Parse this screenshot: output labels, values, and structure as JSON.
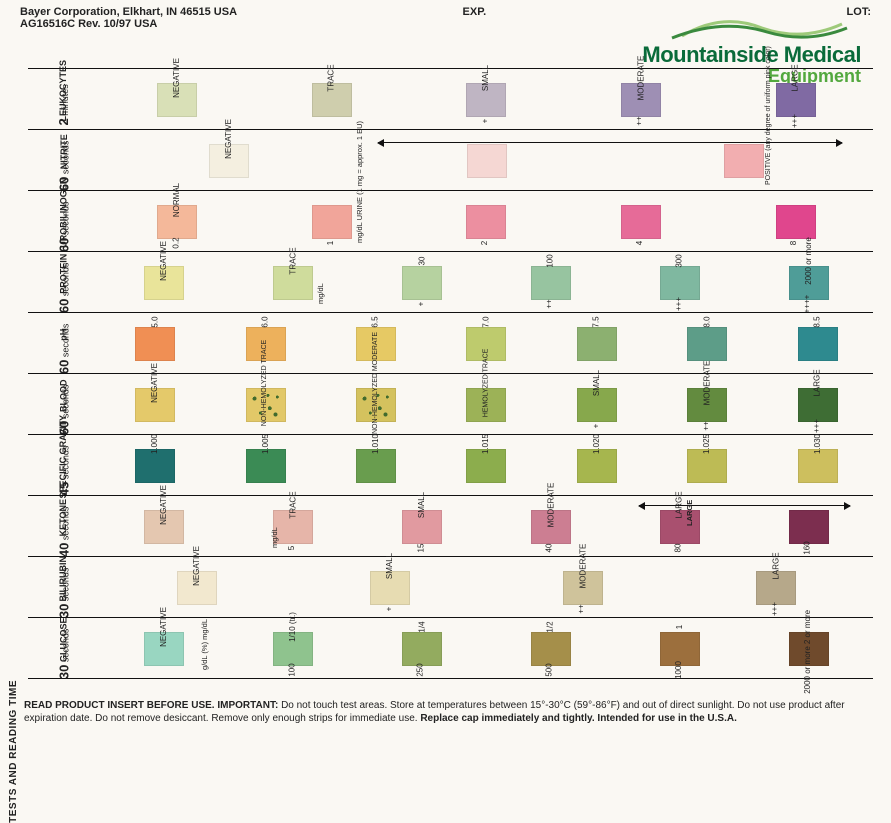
{
  "header": {
    "line1": "Bayer Corporation, Elkhart, IN 46515 USA",
    "line2": "AG16516C  Rev. 10/97  USA",
    "exp": "EXP.",
    "lot": "LOT:"
  },
  "logo": {
    "brand_top": "Mountainside Medical",
    "brand_bottom": "Equipment",
    "color_top": "#0a6b3a",
    "color_bottom": "#53a83e"
  },
  "tests_and_reading_time": "TESTS AND READING TIME",
  "rows": [
    {
      "name": "LEUKOCYTES",
      "timing_num": "2",
      "timing_unit": "minutes",
      "unit_note": "",
      "cells": [
        {
          "label": "NEGATIVE",
          "sub": "",
          "color": "#d9e0b7"
        },
        {
          "label": "TRACE",
          "sub": "",
          "color": "#cfcead"
        },
        {
          "label": "SMALL",
          "sub": "+",
          "color": "#bfb5c3"
        },
        {
          "label": "MODERATE",
          "sub": "++",
          "color": "#9e8fb4"
        },
        {
          "label": "LARGE",
          "sub": "+++",
          "color": "#806aa3"
        }
      ]
    },
    {
      "name": "NITRITE",
      "timing_num": "60",
      "timing_unit": "seconds",
      "unit_note": "",
      "arrow_label": "POSITIVE (any degree of uniform pink color)",
      "cells": [
        {
          "label": "NEGATIVE",
          "sub": "",
          "color": "#f4efe0"
        },
        {
          "label": "",
          "sub": "",
          "color": "#f5d7d3"
        },
        {
          "label": "",
          "sub": "",
          "color": "#f2aeb0"
        }
      ]
    },
    {
      "name": "UROBILINOGEN",
      "timing_num": "60",
      "timing_unit": "seconds",
      "unit_note": "mg/dL URINE (1 mg = approx. 1 EU)",
      "cells": [
        {
          "label": "NORMAL",
          "sub": "0.2",
          "color": "#f4b89a"
        },
        {
          "label": "",
          "sub": "1",
          "color": "#f1a59a"
        },
        {
          "label": "",
          "sub": "2",
          "color": "#ec8fa0"
        },
        {
          "label": "",
          "sub": "4",
          "color": "#e66b98"
        },
        {
          "label": "",
          "sub": "8",
          "color": "#e0468d"
        }
      ]
    },
    {
      "name": "PROTEIN",
      "timing_num": "60",
      "timing_unit": "seconds",
      "unit_note": "mg/dL",
      "cells": [
        {
          "label": "NEGATIVE",
          "sub": "",
          "color": "#e9e49a"
        },
        {
          "label": "TRACE",
          "sub": "",
          "color": "#cfdc9c"
        },
        {
          "label": "30",
          "sub": "+",
          "color": "#b6d2a0"
        },
        {
          "label": "100",
          "sub": "++",
          "color": "#97c4a0"
        },
        {
          "label": "300",
          "sub": "+++",
          "color": "#7fb8a0"
        },
        {
          "label": "2000 or more",
          "sub": "++++",
          "color": "#4f9d98"
        }
      ]
    },
    {
      "name": "pH",
      "timing_num": "60",
      "timing_unit": "seconds",
      "unit_note": "",
      "cells": [
        {
          "label": "5.0",
          "sub": "",
          "color": "#f08f54"
        },
        {
          "label": "6.0",
          "sub": "",
          "color": "#edb15c"
        },
        {
          "label": "6.5",
          "sub": "",
          "color": "#e6c964"
        },
        {
          "label": "7.0",
          "sub": "",
          "color": "#becb6d"
        },
        {
          "label": "7.5",
          "sub": "",
          "color": "#8cb070"
        },
        {
          "label": "8.0",
          "sub": "",
          "color": "#5d9d88"
        },
        {
          "label": "8.5",
          "sub": "",
          "color": "#2e8a8f"
        }
      ]
    },
    {
      "name": "BLOOD",
      "timing_num": "60",
      "timing_unit": "seconds",
      "unit_note": "",
      "cells": [
        {
          "label": "NEGATIVE",
          "sub": "",
          "color": "#e4c96a"
        },
        {
          "label": "NON-HEMOLYZED TRACE",
          "sub": "",
          "color": "#e2c868",
          "speckle": true
        },
        {
          "label": "NON-HEMOLYZED MODERATE",
          "sub": "",
          "color": "#d4c25e",
          "speckle": true
        },
        {
          "label": "HEMOLYZED TRACE",
          "sub": "",
          "color": "#9cb257"
        },
        {
          "label": "SMALL",
          "sub": "+",
          "color": "#87a84c"
        },
        {
          "label": "MODERATE",
          "sub": "++",
          "color": "#638b3f"
        },
        {
          "label": "LARGE",
          "sub": "+++",
          "color": "#3e6d34"
        }
      ]
    },
    {
      "name": "SPECIFIC GRAVITY",
      "timing_num": "45",
      "timing_unit": "seconds",
      "unit_note": "",
      "cells": [
        {
          "label": "1.000",
          "sub": "",
          "color": "#1f6f6e"
        },
        {
          "label": "1.005",
          "sub": "",
          "color": "#3b8b55"
        },
        {
          "label": "1.010",
          "sub": "",
          "color": "#699d4e"
        },
        {
          "label": "1.015",
          "sub": "",
          "color": "#8cad4d"
        },
        {
          "label": "1.020",
          "sub": "",
          "color": "#a6b64e"
        },
        {
          "label": "1.025",
          "sub": "",
          "color": "#bdbb55"
        },
        {
          "label": "1.030",
          "sub": "",
          "color": "#cdbf5e"
        }
      ]
    },
    {
      "name": "KETONE",
      "timing_num": "40",
      "timing_unit": "seconds",
      "unit_note": "mg/dL",
      "cells": [
        {
          "label": "NEGATIVE",
          "sub": "",
          "color": "#e4c7b0"
        },
        {
          "label": "TRACE",
          "sub": "5",
          "color": "#e6b5a9"
        },
        {
          "label": "SMALL",
          "sub": "15",
          "color": "#e19aa0"
        },
        {
          "label": "MODERATE",
          "sub": "40",
          "color": "#cc7e92"
        },
        {
          "label": "LARGE",
          "sub": "80",
          "color": "#a9506f"
        },
        {
          "label": "",
          "sub": "160",
          "color": "#7c2e4f"
        }
      ],
      "arrow_between": {
        "start": 4,
        "end": 5
      }
    },
    {
      "name": "BILIRUBIN",
      "timing_num": "30",
      "timing_unit": "seconds",
      "unit_note": "",
      "cells": [
        {
          "label": "NEGATIVE",
          "sub": "",
          "color": "#f2e8cf"
        },
        {
          "label": "SMALL",
          "sub": "+",
          "color": "#e7dcb2"
        },
        {
          "label": "MODERATE",
          "sub": "++",
          "color": "#cfc39b"
        },
        {
          "label": "LARGE",
          "sub": "+++",
          "color": "#b6a88a"
        }
      ]
    },
    {
      "name": "GLUCOSE",
      "timing_num": "30",
      "timing_unit": "seconds",
      "unit_note": "g/dL (%)  mg/dL",
      "cells": [
        {
          "label": "NEGATIVE",
          "sub": "",
          "color": "#99d6c1"
        },
        {
          "label": "1/10 (tr.)",
          "sub": "100",
          "color": "#8fc38e"
        },
        {
          "label": "1/4",
          "sub": "250",
          "color": "#93ab5f"
        },
        {
          "label": "1/2",
          "sub": "500",
          "color": "#a58f4a"
        },
        {
          "label": "1",
          "sub": "1000",
          "color": "#9c6f3d"
        },
        {
          "label": "2 or more",
          "sub": "2000 or more",
          "color": "#6f4a2c"
        }
      ]
    }
  ],
  "footer": {
    "lead": "READ PRODUCT INSERT BEFORE USE.  IMPORTANT:",
    "body": "Do not touch test areas. Store at temperatures between 15°-30°C (59°-86°F) and out of direct sunlight. Do not use product after expiration date. Do not remove desiccant. Remove only enough strips for immediate use.",
    "tail": "Replace cap immediately and tightly. Intended for use in the U.S.A."
  }
}
